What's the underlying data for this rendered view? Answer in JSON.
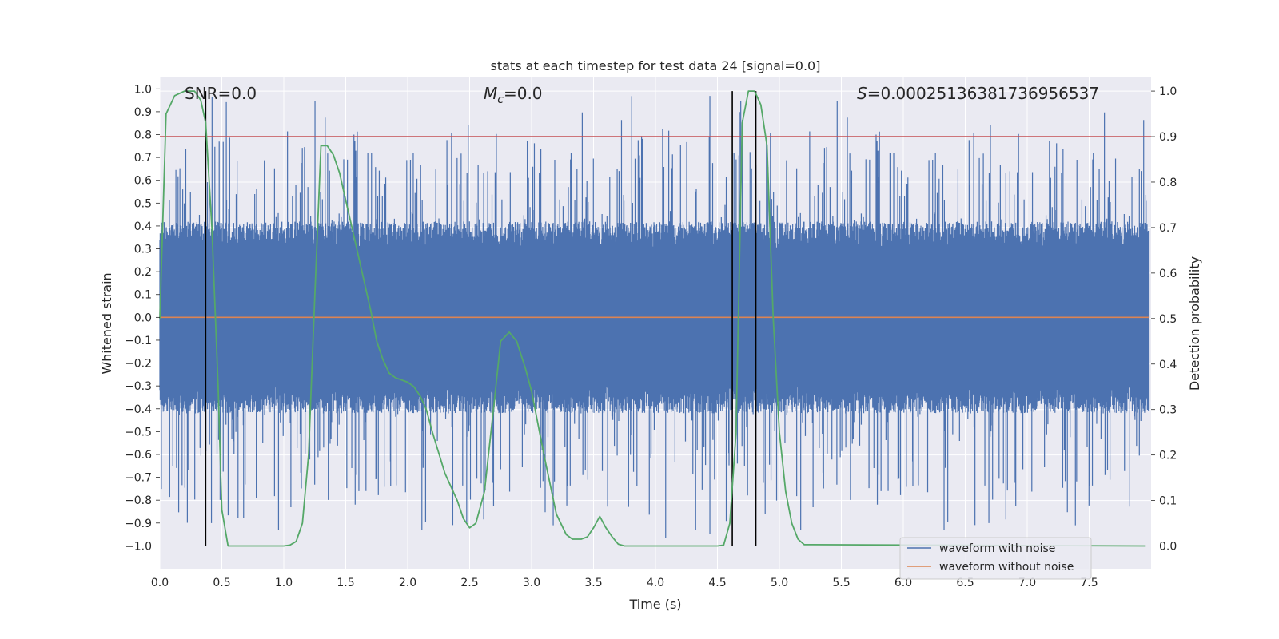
{
  "chart_data": {
    "type": "line",
    "title": "stats at each timestep for test data 24 [signal=0.0]",
    "xlabel": "Time (s)",
    "ylabel": "Whitened strain",
    "ylabel_right": "Detection probability",
    "xlim": [
      0,
      8
    ],
    "ylim": [
      -1.1,
      1.05
    ],
    "ylim_right": [
      -0.05,
      1.03
    ],
    "x_ticks": [
      "0.0",
      "0.5",
      "1.0",
      "1.5",
      "2.0",
      "2.5",
      "3.0",
      "3.5",
      "4.0",
      "4.5",
      "5.0",
      "5.5",
      "6.0",
      "6.5",
      "7.0",
      "7.5"
    ],
    "y_ticks": [
      "1.0",
      "0.9",
      "0.8",
      "0.7",
      "0.6",
      "0.5",
      "0.4",
      "0.3",
      "0.2",
      "0.1",
      "0.0",
      "−0.1",
      "−0.2",
      "−0.3",
      "−0.4",
      "−0.5",
      "−0.6",
      "−0.7",
      "−0.8",
      "−0.9",
      "−1.0"
    ],
    "y_ticks_right": [
      "1.0",
      "0.9",
      "0.8",
      "0.7",
      "0.6",
      "0.5",
      "0.4",
      "0.3",
      "0.2",
      "0.1",
      "0.0"
    ],
    "annotations": {
      "snr": "SNR=0.0",
      "mc_symbol": "M",
      "mc_sub": "c",
      "mc_value": "=0.0",
      "s_symbol": "S",
      "s_value": "=0.00025136381736956537"
    },
    "threshold": 0.9,
    "vlines": [
      0.37,
      4.62,
      4.81
    ],
    "series": [
      {
        "name": "waveform with noise",
        "color": "#4c72b0",
        "axis": "left",
        "note": "dense noise samples, amplitude roughly ±0.4 with spikes to ±1.0"
      },
      {
        "name": "waveform without noise",
        "color": "#dd8452",
        "axis": "left",
        "values_constant": 0.0
      },
      {
        "name": "detection probability",
        "color": "#55a868",
        "axis": "right",
        "x": [
          0.0,
          0.05,
          0.12,
          0.2,
          0.28,
          0.33,
          0.37,
          0.42,
          0.47,
          0.5,
          0.55,
          0.6,
          0.7,
          0.8,
          0.9,
          1.0,
          1.05,
          1.1,
          1.15,
          1.2,
          1.25,
          1.3,
          1.35,
          1.4,
          1.45,
          1.5,
          1.55,
          1.6,
          1.7,
          1.75,
          1.8,
          1.85,
          1.9,
          2.0,
          2.05,
          2.1,
          2.15,
          2.2,
          2.3,
          2.4,
          2.45,
          2.5,
          2.55,
          2.62,
          2.7,
          2.75,
          2.82,
          2.88,
          2.95,
          3.0,
          3.1,
          3.2,
          3.28,
          3.33,
          3.4,
          3.45,
          3.5,
          3.55,
          3.6,
          3.65,
          3.7,
          3.75,
          3.8,
          4.0,
          4.5,
          4.55,
          4.6,
          4.65,
          4.7,
          4.75,
          4.8,
          4.85,
          4.9,
          4.95,
          5.0,
          5.05,
          5.1,
          5.15,
          5.2,
          7.95
        ],
        "y": [
          0.5,
          0.95,
          0.99,
          1.0,
          1.0,
          0.98,
          0.93,
          0.7,
          0.35,
          0.08,
          0.0,
          0.0,
          0.0,
          0.0,
          0.0,
          0.0,
          0.002,
          0.01,
          0.05,
          0.2,
          0.55,
          0.88,
          0.88,
          0.86,
          0.82,
          0.76,
          0.7,
          0.64,
          0.52,
          0.45,
          0.41,
          0.38,
          0.37,
          0.36,
          0.35,
          0.33,
          0.3,
          0.25,
          0.16,
          0.1,
          0.06,
          0.04,
          0.05,
          0.12,
          0.32,
          0.45,
          0.47,
          0.45,
          0.39,
          0.34,
          0.2,
          0.07,
          0.025,
          0.015,
          0.015,
          0.02,
          0.04,
          0.065,
          0.04,
          0.02,
          0.004,
          0.0,
          0.0,
          0.0,
          0.0,
          0.002,
          0.05,
          0.25,
          0.93,
          1.0,
          1.0,
          0.97,
          0.88,
          0.5,
          0.25,
          0.12,
          0.05,
          0.015,
          0.003,
          0.0
        ]
      }
    ],
    "legend": [
      "waveform with noise",
      "waveform without noise"
    ],
    "legend_position": "lower-right"
  },
  "colors": {
    "background": "#eaeaf2",
    "grid": "#ffffff",
    "noise": "#4c72b0",
    "clean": "#dd8452",
    "prob": "#55a868",
    "threshold": "#c44e52",
    "vline": "#000000"
  }
}
